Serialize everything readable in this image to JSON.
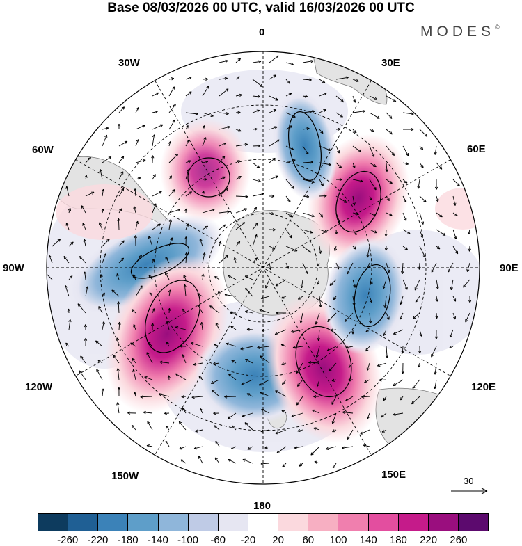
{
  "title": "Base 08/03/2026 00 UTC, valid 16/03/2026 00 UTC",
  "brand": "MODES",
  "brand_mark": "©",
  "labels": {
    "lon_0": "0",
    "lon_30e": "30E",
    "lon_60e": "60E",
    "lon_90e": "90E",
    "lon_120e": "120E",
    "lon_150e": "150E",
    "lon_180": "180",
    "lon_150w": "150W",
    "lon_120w": "120W",
    "lon_90w": "90W",
    "lon_60w": "60W",
    "lon_30w": "30W"
  },
  "reference_vector": "30",
  "colorbar": {
    "colors": [
      "#0d3b5e",
      "#1f5f94",
      "#3b82b8",
      "#5e9ec9",
      "#8fb6da",
      "#bfcbe6",
      "#e6e6f2",
      "#ffffff",
      "#fbd9de",
      "#f7afc2",
      "#f07fae",
      "#e34e9f",
      "#c51b8a",
      "#9a0e7e",
      "#5c0a6e"
    ],
    "ticks": [
      "-260",
      "-220",
      "-180",
      "-140",
      "-100",
      "-60",
      "-20",
      "20",
      "60",
      "100",
      "140",
      "180",
      "220",
      "260"
    ]
  },
  "anomalies": [
    {
      "name": "positive-anomaly-30e-60e",
      "value": 220,
      "lon": 50,
      "r": 0.55
    },
    {
      "name": "negative-anomaly-0-30e",
      "value": -160,
      "lon": 18,
      "r": 0.5
    },
    {
      "name": "positive-anomaly-30w",
      "value": 200,
      "lon": -30,
      "r": 0.45
    },
    {
      "name": "negative-anomaly-90w",
      "value": -140,
      "lon": -82,
      "r": 0.55
    },
    {
      "name": "positive-anomaly-120w",
      "value": 240,
      "lon": -118,
      "r": 0.48
    },
    {
      "name": "negative-anomaly-180",
      "value": -120,
      "lon": 175,
      "r": 0.55
    },
    {
      "name": "positive-anomaly-150e",
      "value": 240,
      "lon": 148,
      "r": 0.52
    },
    {
      "name": "negative-anomaly-100e",
      "value": -110,
      "lon": 105,
      "r": 0.55
    }
  ]
}
